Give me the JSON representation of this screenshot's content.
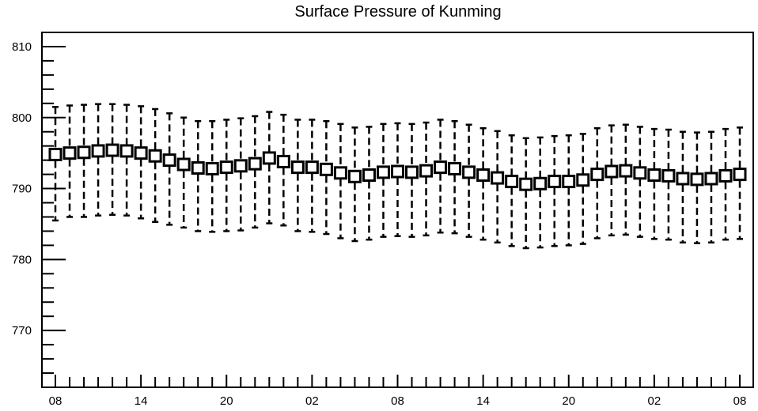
{
  "chart_data": {
    "type": "box",
    "title": "Surface Pressure of Kunming",
    "xlabel": "",
    "ylabel": "",
    "ylim": [
      762,
      812
    ],
    "y_ticks": [
      "770",
      "780",
      "790",
      "800",
      "810"
    ],
    "x_tick_labels": [
      "08",
      "14",
      "20",
      "02",
      "08",
      "14",
      "20",
      "02",
      "08"
    ],
    "x_tick_every_n_steps": 6,
    "grid": false,
    "legend": "none",
    "marker": "open-square",
    "series": [
      {
        "median": [
          794.8,
          795.0,
          795.1,
          795.3,
          795.4,
          795.3,
          795.0,
          794.6,
          794.0,
          793.4,
          792.9,
          792.8,
          793.0,
          793.2,
          793.5,
          794.3,
          793.8,
          793.0,
          793.0,
          792.7,
          792.2,
          791.7,
          791.9,
          792.3,
          792.4,
          792.3,
          792.5,
          793.0,
          792.8,
          792.3,
          791.9,
          791.5,
          791.0,
          790.6,
          790.7,
          791.0,
          791.0,
          791.2,
          792.0,
          792.4,
          792.5,
          792.2,
          791.9,
          791.8,
          791.4,
          791.3,
          791.4,
          791.8,
          792.0
        ],
        "whisker_high": [
          801.5,
          801.7,
          801.8,
          801.9,
          801.9,
          801.8,
          801.6,
          801.2,
          800.6,
          800.0,
          799.5,
          799.5,
          799.7,
          799.9,
          800.2,
          800.8,
          800.4,
          799.7,
          799.7,
          799.5,
          799.1,
          798.6,
          798.7,
          799.1,
          799.2,
          799.1,
          799.3,
          799.7,
          799.5,
          799.0,
          798.5,
          798.1,
          797.5,
          797.1,
          797.2,
          797.4,
          797.5,
          797.7,
          798.5,
          798.9,
          799.0,
          798.7,
          798.4,
          798.3,
          798.0,
          797.9,
          798.0,
          798.4,
          798.6
        ],
        "whisker_low": [
          785.5,
          786.0,
          786.0,
          786.2,
          786.3,
          786.2,
          785.8,
          785.3,
          784.9,
          784.5,
          784.0,
          783.9,
          784.0,
          784.1,
          784.5,
          785.1,
          784.8,
          784.0,
          783.9,
          783.6,
          783.0,
          782.6,
          782.8,
          783.2,
          783.3,
          783.2,
          783.4,
          783.8,
          783.7,
          783.2,
          782.8,
          782.4,
          781.9,
          781.6,
          781.7,
          781.9,
          782.0,
          782.2,
          783.0,
          783.4,
          783.5,
          783.2,
          782.9,
          782.8,
          782.4,
          782.3,
          782.4,
          782.8,
          782.9
        ]
      }
    ]
  }
}
